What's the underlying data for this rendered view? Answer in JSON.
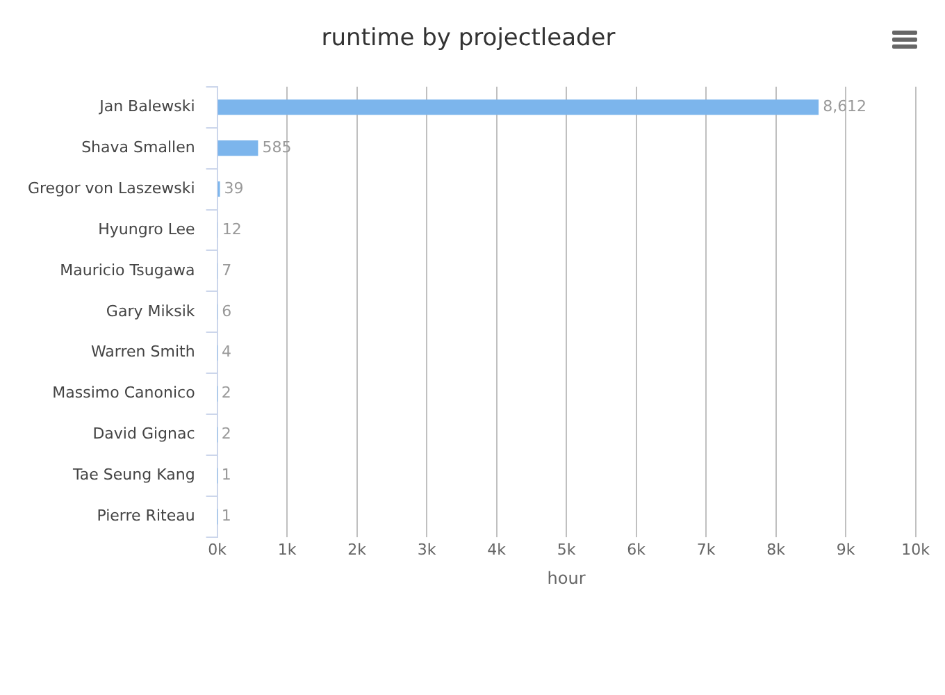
{
  "chart_data": {
    "type": "bar",
    "orientation": "horizontal",
    "title": "runtime by projectleader",
    "xlabel": "hour",
    "categories": [
      "Jan Balewski",
      "Shava Smallen",
      "Gregor von Laszewski",
      "Hyungro Lee",
      "Mauricio Tsugawa",
      "Gary Miksik",
      "Warren Smith",
      "Massimo Canonico",
      "David Gignac",
      "Tae Seung Kang",
      "Pierre Riteau"
    ],
    "values": [
      8612,
      585,
      39,
      12,
      7,
      6,
      4,
      2,
      2,
      1,
      1
    ],
    "value_labels": [
      "8,612",
      "585",
      "39",
      "12",
      "7",
      "6",
      "4",
      "2",
      "2",
      "1",
      "1"
    ],
    "color": "#7cb5ec",
    "xlim": [
      0,
      10000
    ],
    "xticks": [
      {
        "value": 0,
        "label": "0k"
      },
      {
        "value": 1000,
        "label": "1k"
      },
      {
        "value": 2000,
        "label": "2k"
      },
      {
        "value": 3000,
        "label": "3k"
      },
      {
        "value": 4000,
        "label": "4k"
      },
      {
        "value": 5000,
        "label": "5k"
      },
      {
        "value": 6000,
        "label": "6k"
      },
      {
        "value": 7000,
        "label": "7k"
      },
      {
        "value": 8000,
        "label": "8k"
      },
      {
        "value": 9000,
        "label": "9k"
      },
      {
        "value": 10000,
        "label": "10k"
      }
    ],
    "grid": "x",
    "legend": false
  }
}
